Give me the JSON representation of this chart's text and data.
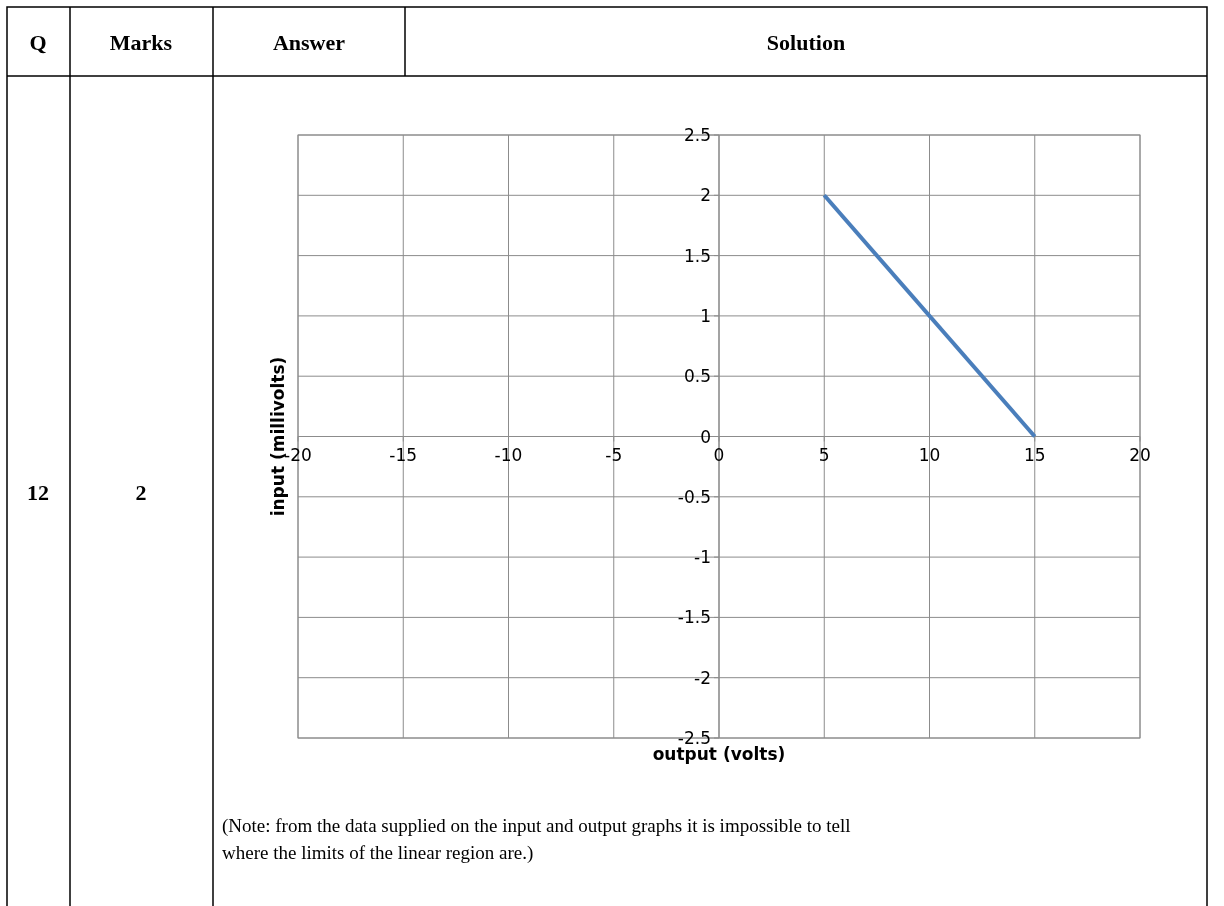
{
  "chart_data": {
    "type": "line",
    "xlabel": "output (volts)",
    "ylabel": "input (millivolts)",
    "series": [
      {
        "color": "#4a7ebb",
        "x": [
          5,
          15
        ],
        "values": [
          2,
          0
        ]
      }
    ],
    "xlim": [
      -20,
      20
    ],
    "xticks": [
      -20,
      -15,
      -10,
      -5,
      0,
      5,
      10,
      15,
      20
    ],
    "ylim": [
      -2.5,
      2.5
    ],
    "yticks": [
      -2.5,
      -2,
      -1.5,
      -1,
      -0.5,
      0,
      0.5,
      1,
      1.5,
      2,
      2.5
    ],
    "grid": true,
    "line_style": "solid",
    "annotations": [
      "Q",
      "Marks",
      "Answer",
      "Solution",
      "12",
      "2",
      "(Note: from the data supplied on the input and output graphs it is impossible to tell where the limits of the linear region are.)"
    ]
  }
}
